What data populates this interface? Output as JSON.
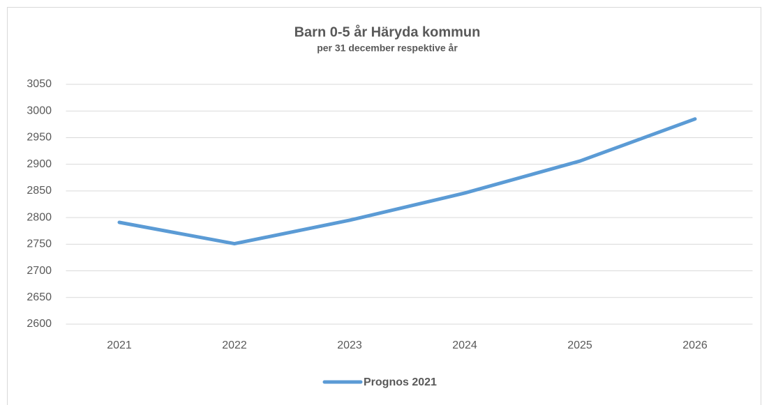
{
  "chart_data": {
    "type": "line",
    "title": "Barn 0-5 år Häryda kommun",
    "subtitle": "per 31 december respektive år",
    "categories": [
      "2021",
      "2022",
      "2023",
      "2024",
      "2025",
      "2026"
    ],
    "series": [
      {
        "name": "Prognos 2021",
        "color": "#5b9bd5",
        "values": [
          2791,
          2751,
          2795,
          2846,
          2906,
          2985
        ]
      }
    ],
    "ylim": [
      2600,
      3050
    ],
    "yticks": [
      2600,
      2650,
      2700,
      2750,
      2800,
      2850,
      2900,
      2950,
      3000,
      3050
    ],
    "grid": true,
    "legend": "bottom"
  }
}
